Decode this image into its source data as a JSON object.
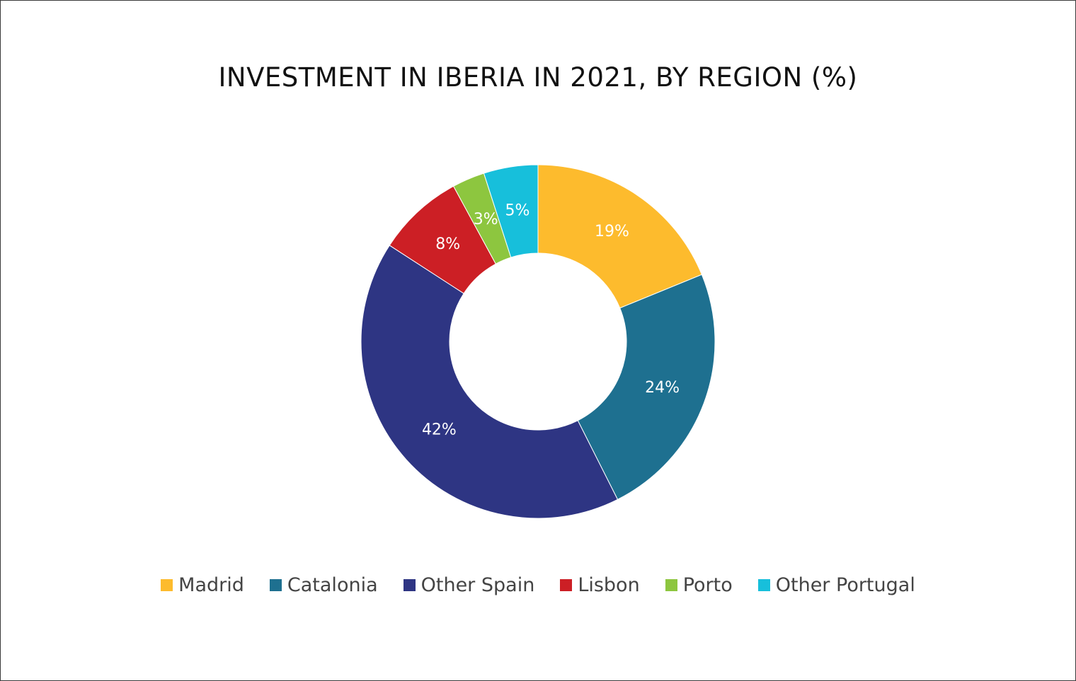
{
  "chart_data": {
    "type": "pie",
    "title": "INVESTMENT IN IBERIA IN 2021, BY REGION (%)",
    "donut": true,
    "categories": [
      "Madrid",
      "Catalonia",
      "Other Spain",
      "Lisbon",
      "Porto",
      "Other Portugal"
    ],
    "values": [
      19,
      24,
      42,
      8,
      3,
      5
    ],
    "labels": [
      "19%",
      "24%",
      "42%",
      "8%",
      "3%",
      "5%"
    ],
    "colors": [
      "#FDBB2D",
      "#1E7090",
      "#2E3583",
      "#CC1F25",
      "#8DC63F",
      "#17BFDB"
    ],
    "legend_position": "bottom"
  }
}
